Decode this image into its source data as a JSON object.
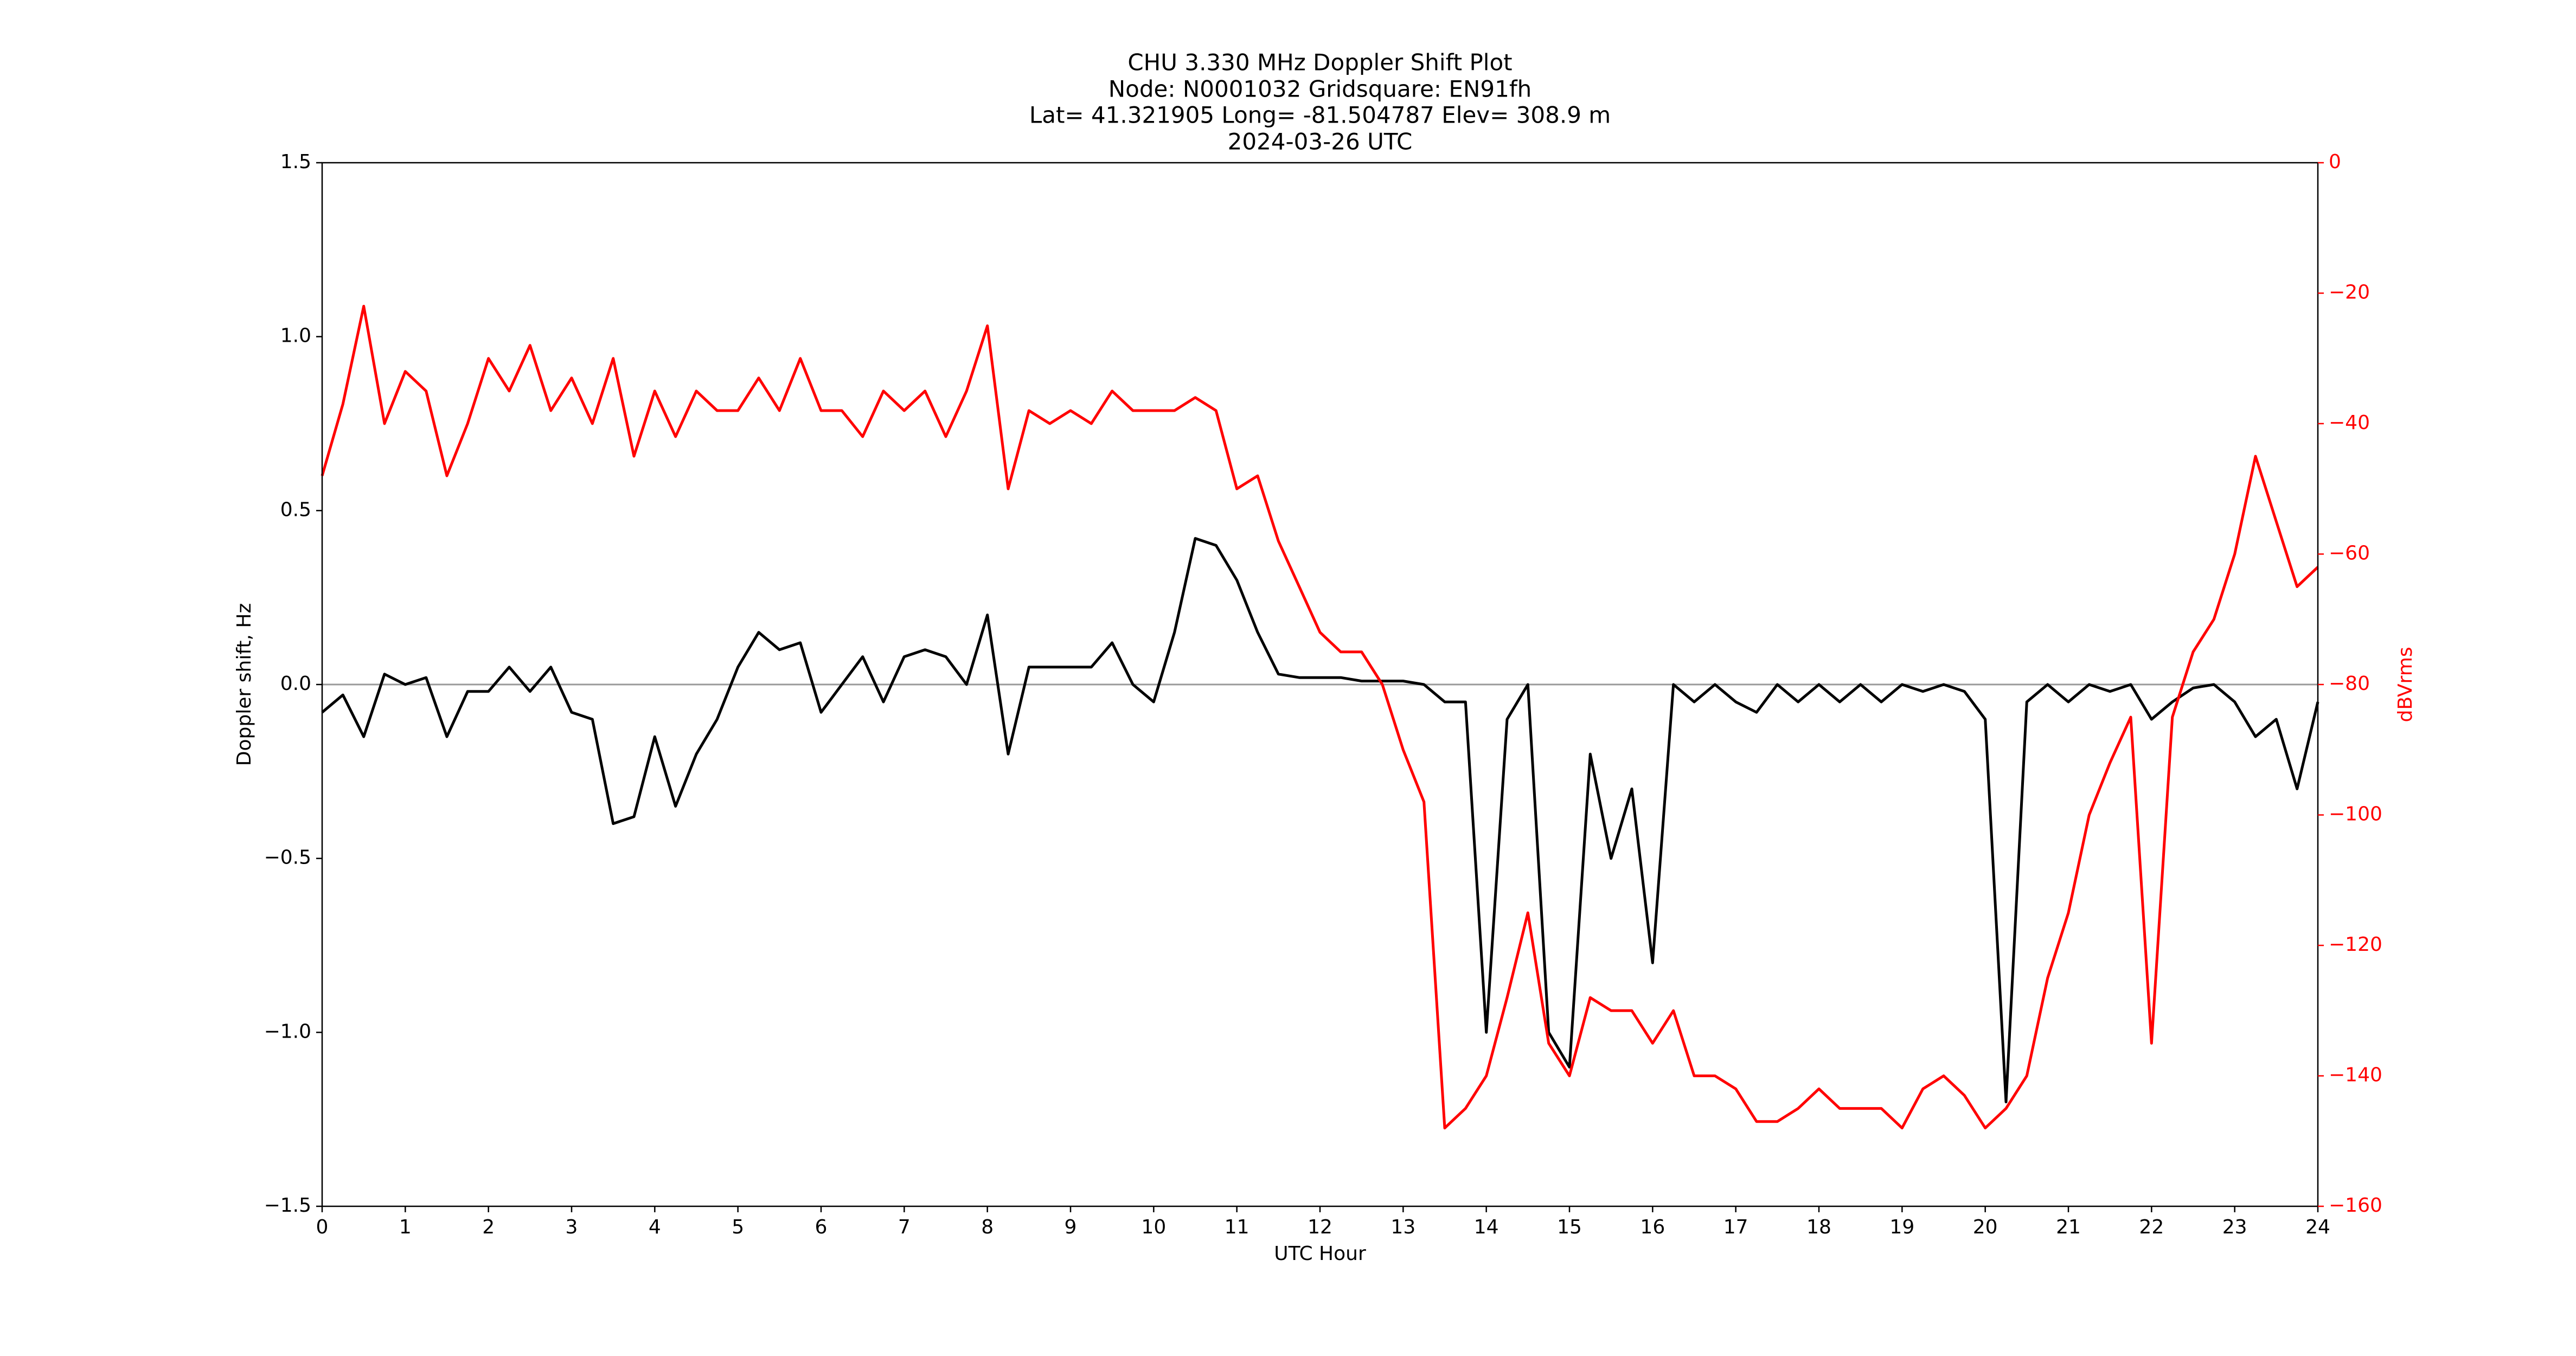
{
  "chart_data": {
    "type": "line",
    "title": [
      "CHU 3.330 MHz Doppler Shift Plot",
      "Node:  N0001032     Gridsquare:  EN91fh",
      "Lat=    41.321905    Long= -81.504787    Elev= 308.9 m",
      "2024-03-26  UTC"
    ],
    "xlabel": "UTC Hour",
    "ylabel": "Doppler shift, Hz",
    "y2label": "dBVrms",
    "y2color": "#ff0000",
    "xlim": [
      0,
      24
    ],
    "xticks": [
      0,
      1,
      2,
      3,
      4,
      5,
      6,
      7,
      8,
      9,
      10,
      11,
      12,
      13,
      14,
      15,
      16,
      17,
      18,
      19,
      20,
      21,
      22,
      23,
      24
    ],
    "ylim": [
      -1.5,
      1.5
    ],
    "yticks": [
      {
        "value": -1.5,
        "label": "−1.5"
      },
      {
        "value": -1.0,
        "label": "−1.0"
      },
      {
        "value": -0.5,
        "label": "−0.5"
      },
      {
        "value": 0,
        "label": "0.0"
      },
      0.5,
      {
        "value": 1.0,
        "label": "1.0"
      },
      1.5
    ],
    "y2lim": [
      -160,
      0
    ],
    "y2ticks": [
      {
        "value": -160,
        "label": "−160"
      },
      {
        "value": -140,
        "label": "−140"
      },
      {
        "value": -120,
        "label": "−120"
      },
      {
        "value": -100,
        "label": "−100"
      },
      {
        "value": -80,
        "label": "−80"
      },
      {
        "value": -60,
        "label": "−60"
      },
      {
        "value": -40,
        "label": "−40"
      },
      {
        "value": -20,
        "label": "−20"
      },
      0
    ],
    "reference_line": 0,
    "x": [
      0,
      0.25,
      0.5,
      0.75,
      1,
      1.25,
      1.5,
      1.75,
      2,
      2.25,
      2.5,
      2.75,
      3,
      3.25,
      3.5,
      3.75,
      4,
      4.25,
      4.5,
      4.75,
      5,
      5.25,
      5.5,
      5.75,
      6,
      6.25,
      6.5,
      6.75,
      7,
      7.25,
      7.5,
      7.75,
      8,
      8.25,
      8.5,
      8.75,
      9,
      9.25,
      9.5,
      9.75,
      10,
      10.25,
      10.5,
      10.75,
      11,
      11.25,
      11.5,
      11.75,
      12,
      12.25,
      12.5,
      12.75,
      13,
      13.25,
      13.5,
      13.75,
      14,
      14.25,
      14.5,
      14.75,
      15,
      15.25,
      15.5,
      15.75,
      16,
      16.25,
      16.5,
      16.75,
      17,
      17.25,
      17.5,
      17.75,
      18,
      18.25,
      18.5,
      18.75,
      19,
      19.25,
      19.5,
      19.75,
      20,
      20.25,
      20.5,
      20.75,
      21,
      21.25,
      21.5,
      21.75,
      22,
      22.25,
      22.5,
      22.75,
      23,
      23.25,
      23.5,
      23.75,
      24
    ],
    "series": [
      {
        "name": "Doppler shift",
        "color": "#000000",
        "axis": "y",
        "values": [
          -0.08,
          -0.03,
          -0.15,
          0.03,
          0,
          0.02,
          -0.15,
          -0.02,
          -0.02,
          0.05,
          -0.02,
          0.05,
          -0.08,
          -0.1,
          -0.4,
          -0.38,
          -0.15,
          -0.35,
          -0.2,
          -0.1,
          0.05,
          0.15,
          0.1,
          0.12,
          -0.08,
          0,
          0.08,
          -0.05,
          0.08,
          0.1,
          0.08,
          0,
          0.2,
          -0.2,
          0.05,
          0.05,
          0.05,
          0.05,
          0.12,
          0,
          -0.05,
          0.15,
          0.42,
          0.4,
          0.3,
          0.15,
          0.03,
          0.02,
          0.02,
          0.02,
          0.01,
          0.01,
          0.01,
          0,
          -0.05,
          -0.05,
          -1.0,
          -0.1,
          0,
          -1.0,
          -1.1,
          -0.2,
          -0.5,
          -0.3,
          -0.8,
          0,
          -0.05,
          0,
          -0.05,
          -0.08,
          0,
          -0.05,
          0,
          -0.05,
          0,
          -0.05,
          0,
          -0.02,
          0,
          -0.02,
          -0.1,
          -1.2,
          -0.05,
          0,
          -0.05,
          0,
          -0.02,
          0,
          -0.1,
          -0.05,
          -0.01,
          0,
          -0.05,
          -0.15,
          -0.1,
          -0.3,
          -0.05
        ]
      },
      {
        "name": "dBVrms",
        "color": "#ff0000",
        "axis": "y2",
        "values": [
          -48,
          -37,
          -22,
          -40,
          -32,
          -35,
          -48,
          -40,
          -30,
          -35,
          -28,
          -38,
          -33,
          -40,
          -30,
          -45,
          -35,
          -42,
          -35,
          -38,
          -38,
          -33,
          -38,
          -30,
          -38,
          -38,
          -42,
          -35,
          -38,
          -35,
          -42,
          -35,
          -25,
          -50,
          -38,
          -40,
          -38,
          -40,
          -35,
          -38,
          -38,
          -38,
          -36,
          -38,
          -50,
          -48,
          -58,
          -65,
          -72,
          -75,
          -75,
          -80,
          -90,
          -98,
          -148,
          -145,
          -140,
          -128,
          -115,
          -135,
          -140,
          -128,
          -130,
          -130,
          -135,
          -130,
          -140,
          -140,
          -142,
          -147,
          -147,
          -145,
          -142,
          -145,
          -145,
          -145,
          -148,
          -142,
          -140,
          -143,
          -148,
          -145,
          -140,
          -125,
          -115,
          -100,
          -92,
          -85,
          -135,
          -85,
          -75,
          -70,
          -60,
          -45,
          -55,
          -65,
          -62
        ]
      }
    ]
  }
}
